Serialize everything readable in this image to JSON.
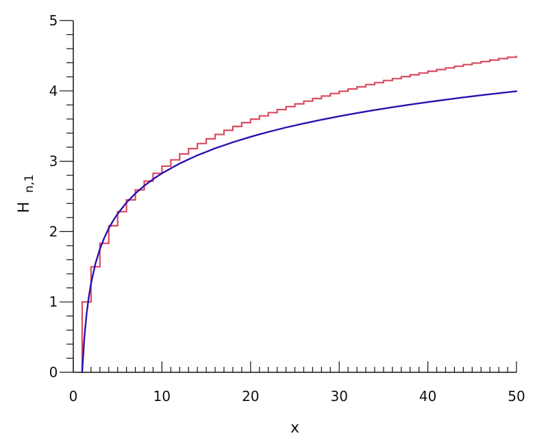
{
  "chart_data": {
    "type": "line",
    "title": "",
    "xlabel": "x",
    "ylabel": {
      "main": "H",
      "subscript": "n,1"
    },
    "xlim": [
      0,
      50
    ],
    "ylim": [
      0,
      5
    ],
    "x_major_ticks": [
      0,
      10,
      20,
      30,
      40,
      50
    ],
    "x_tick_labels": [
      "0",
      "10",
      "20",
      "30",
      "40",
      "50"
    ],
    "x_minor_step": 1,
    "y_major_ticks": [
      0,
      1,
      2,
      3,
      4,
      5
    ],
    "y_tick_labels": [
      "0",
      "1",
      "2",
      "3",
      "4",
      "5"
    ],
    "y_minor_step": 0.2,
    "grid": false,
    "legend": "none",
    "series": [
      {
        "kind": "step",
        "color": "#d94a5e",
        "x": [
          1,
          2,
          3,
          4,
          5,
          6,
          7,
          8,
          9,
          10,
          11,
          12,
          13,
          14,
          15,
          16,
          17,
          18,
          19,
          20,
          21,
          22,
          23,
          24,
          25,
          26,
          27,
          28,
          29,
          30,
          31,
          32,
          33,
          34,
          35,
          36,
          37,
          38,
          39,
          40,
          41,
          42,
          43,
          44,
          45,
          46,
          47,
          48,
          49,
          50
        ],
        "y": [
          1.0,
          1.5,
          1.833,
          2.083,
          2.283,
          2.45,
          2.593,
          2.718,
          2.829,
          2.929,
          3.02,
          3.103,
          3.18,
          3.252,
          3.318,
          3.381,
          3.44,
          3.495,
          3.548,
          3.598,
          3.645,
          3.691,
          3.734,
          3.776,
          3.816,
          3.854,
          3.891,
          3.927,
          3.962,
          3.995,
          4.027,
          4.058,
          4.089,
          4.118,
          4.147,
          4.175,
          4.202,
          4.228,
          4.254,
          4.279,
          4.303,
          4.327,
          4.35,
          4.373,
          4.395,
          4.417,
          4.438,
          4.459,
          4.479,
          4.499
        ]
      },
      {
        "kind": "smooth",
        "color": "#2a10b0",
        "x": [
          1,
          1.25,
          1.5,
          1.75,
          2,
          2.5,
          3,
          3.5,
          4,
          4.5,
          5,
          6,
          7,
          8,
          9,
          10,
          12,
          14,
          16,
          18,
          20,
          22,
          24,
          26,
          28,
          30,
          32,
          34,
          36,
          38,
          40,
          42,
          44,
          46,
          48,
          50
        ],
        "y": [
          0.0,
          0.498,
          0.829,
          1.073,
          1.264,
          1.546,
          1.752,
          1.913,
          2.045,
          2.156,
          2.252,
          2.412,
          2.542,
          2.651,
          2.745,
          2.828,
          2.968,
          3.084,
          3.183,
          3.27,
          3.347,
          3.417,
          3.48,
          3.537,
          3.59,
          3.639,
          3.685,
          3.727,
          3.768,
          3.805,
          3.841,
          3.875,
          3.907,
          3.938,
          3.967,
          3.995
        ]
      }
    ]
  }
}
